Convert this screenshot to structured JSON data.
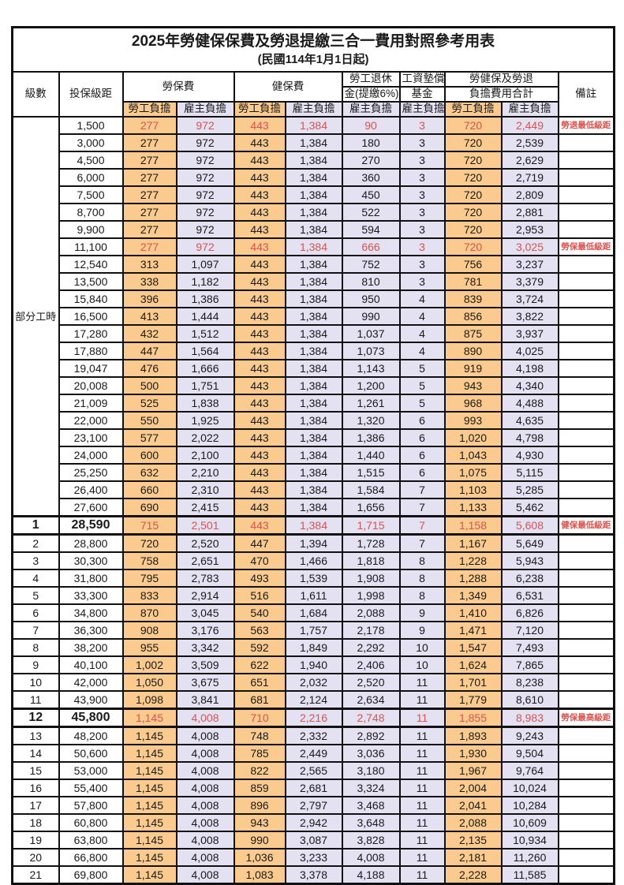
{
  "title": "2025年勞健保保費及勞退提繳三合一費用對照參考用表",
  "subtitle": "(民國114年1月1日起)",
  "colors": {
    "employee_bg": "#fbca8e",
    "employer_bg": "#e3e1f2",
    "red_text": "#d9534f"
  },
  "header": {
    "level": "級數",
    "bracket": "投保級距",
    "labor_ins": "勞保費",
    "health_ins": "健保費",
    "pension_line1": "勞工退休",
    "pension_line2": "金(提繳6%)",
    "wage_fund_line1": "工資墊償",
    "wage_fund_line2": "基金",
    "total_line1": "勞健保及勞退",
    "total_line2": "負擔費用合計",
    "note": "備註",
    "employee_share": "勞工負擔",
    "employer_share": "雇主負擔"
  },
  "part_time_label": "部分工時",
  "part_time_rowspan": 23,
  "rows": [
    {
      "level": "",
      "bracket": "1,500",
      "li_emp": "277",
      "li_er": "972",
      "hi_emp": "443",
      "hi_er": "1,384",
      "pension": "90",
      "fund": "3",
      "tot_emp": "720",
      "tot_er": "2,449",
      "note": "勞退最低級距",
      "red": true,
      "bold": false
    },
    {
      "level": "",
      "bracket": "3,000",
      "li_emp": "277",
      "li_er": "972",
      "hi_emp": "443",
      "hi_er": "1,384",
      "pension": "180",
      "fund": "3",
      "tot_emp": "720",
      "tot_er": "2,539",
      "note": "",
      "red": false,
      "bold": false
    },
    {
      "level": "",
      "bracket": "4,500",
      "li_emp": "277",
      "li_er": "972",
      "hi_emp": "443",
      "hi_er": "1,384",
      "pension": "270",
      "fund": "3",
      "tot_emp": "720",
      "tot_er": "2,629",
      "note": "",
      "red": false,
      "bold": false
    },
    {
      "level": "",
      "bracket": "6,000",
      "li_emp": "277",
      "li_er": "972",
      "hi_emp": "443",
      "hi_er": "1,384",
      "pension": "360",
      "fund": "3",
      "tot_emp": "720",
      "tot_er": "2,719",
      "note": "",
      "red": false,
      "bold": false
    },
    {
      "level": "",
      "bracket": "7,500",
      "li_emp": "277",
      "li_er": "972",
      "hi_emp": "443",
      "hi_er": "1,384",
      "pension": "450",
      "fund": "3",
      "tot_emp": "720",
      "tot_er": "2,809",
      "note": "",
      "red": false,
      "bold": false
    },
    {
      "level": "",
      "bracket": "8,700",
      "li_emp": "277",
      "li_er": "972",
      "hi_emp": "443",
      "hi_er": "1,384",
      "pension": "522",
      "fund": "3",
      "tot_emp": "720",
      "tot_er": "2,881",
      "note": "",
      "red": false,
      "bold": false
    },
    {
      "level": "",
      "bracket": "9,900",
      "li_emp": "277",
      "li_er": "972",
      "hi_emp": "443",
      "hi_er": "1,384",
      "pension": "594",
      "fund": "3",
      "tot_emp": "720",
      "tot_er": "2,953",
      "note": "",
      "red": false,
      "bold": false
    },
    {
      "level": "",
      "bracket": "11,100",
      "li_emp": "277",
      "li_er": "972",
      "hi_emp": "443",
      "hi_er": "1,384",
      "pension": "666",
      "fund": "3",
      "tot_emp": "720",
      "tot_er": "3,025",
      "note": "勞保最低級距",
      "red": true,
      "bold": false
    },
    {
      "level": "",
      "bracket": "12,540",
      "li_emp": "313",
      "li_er": "1,097",
      "hi_emp": "443",
      "hi_er": "1,384",
      "pension": "752",
      "fund": "3",
      "tot_emp": "756",
      "tot_er": "3,237",
      "note": "",
      "red": false,
      "bold": false
    },
    {
      "level": "",
      "bracket": "13,500",
      "li_emp": "338",
      "li_er": "1,182",
      "hi_emp": "443",
      "hi_er": "1,384",
      "pension": "810",
      "fund": "3",
      "tot_emp": "781",
      "tot_er": "3,379",
      "note": "",
      "red": false,
      "bold": false
    },
    {
      "level": "",
      "bracket": "15,840",
      "li_emp": "396",
      "li_er": "1,386",
      "hi_emp": "443",
      "hi_er": "1,384",
      "pension": "950",
      "fund": "4",
      "tot_emp": "839",
      "tot_er": "3,724",
      "note": "",
      "red": false,
      "bold": false
    },
    {
      "level": "",
      "bracket": "16,500",
      "li_emp": "413",
      "li_er": "1,444",
      "hi_emp": "443",
      "hi_er": "1,384",
      "pension": "990",
      "fund": "4",
      "tot_emp": "856",
      "tot_er": "3,822",
      "note": "",
      "red": false,
      "bold": false
    },
    {
      "level": "",
      "bracket": "17,280",
      "li_emp": "432",
      "li_er": "1,512",
      "hi_emp": "443",
      "hi_er": "1,384",
      "pension": "1,037",
      "fund": "4",
      "tot_emp": "875",
      "tot_er": "3,937",
      "note": "",
      "red": false,
      "bold": false
    },
    {
      "level": "",
      "bracket": "17,880",
      "li_emp": "447",
      "li_er": "1,564",
      "hi_emp": "443",
      "hi_er": "1,384",
      "pension": "1,073",
      "fund": "4",
      "tot_emp": "890",
      "tot_er": "4,025",
      "note": "",
      "red": false,
      "bold": false
    },
    {
      "level": "",
      "bracket": "19,047",
      "li_emp": "476",
      "li_er": "1,666",
      "hi_emp": "443",
      "hi_er": "1,384",
      "pension": "1,143",
      "fund": "5",
      "tot_emp": "919",
      "tot_er": "4,198",
      "note": "",
      "red": false,
      "bold": false
    },
    {
      "level": "",
      "bracket": "20,008",
      "li_emp": "500",
      "li_er": "1,751",
      "hi_emp": "443",
      "hi_er": "1,384",
      "pension": "1,200",
      "fund": "5",
      "tot_emp": "943",
      "tot_er": "4,340",
      "note": "",
      "red": false,
      "bold": false
    },
    {
      "level": "",
      "bracket": "21,009",
      "li_emp": "525",
      "li_er": "1,838",
      "hi_emp": "443",
      "hi_er": "1,384",
      "pension": "1,261",
      "fund": "5",
      "tot_emp": "968",
      "tot_er": "4,488",
      "note": "",
      "red": false,
      "bold": false
    },
    {
      "level": "",
      "bracket": "22,000",
      "li_emp": "550",
      "li_er": "1,925",
      "hi_emp": "443",
      "hi_er": "1,384",
      "pension": "1,320",
      "fund": "6",
      "tot_emp": "993",
      "tot_er": "4,635",
      "note": "",
      "red": false,
      "bold": false
    },
    {
      "level": "",
      "bracket": "23,100",
      "li_emp": "577",
      "li_er": "2,022",
      "hi_emp": "443",
      "hi_er": "1,384",
      "pension": "1,386",
      "fund": "6",
      "tot_emp": "1,020",
      "tot_er": "4,798",
      "note": "",
      "red": false,
      "bold": false
    },
    {
      "level": "",
      "bracket": "24,000",
      "li_emp": "600",
      "li_er": "2,100",
      "hi_emp": "443",
      "hi_er": "1,384",
      "pension": "1,440",
      "fund": "6",
      "tot_emp": "1,043",
      "tot_er": "4,930",
      "note": "",
      "red": false,
      "bold": false
    },
    {
      "level": "",
      "bracket": "25,250",
      "li_emp": "632",
      "li_er": "2,210",
      "hi_emp": "443",
      "hi_er": "1,384",
      "pension": "1,515",
      "fund": "6",
      "tot_emp": "1,075",
      "tot_er": "5,115",
      "note": "",
      "red": false,
      "bold": false
    },
    {
      "level": "",
      "bracket": "26,400",
      "li_emp": "660",
      "li_er": "2,310",
      "hi_emp": "443",
      "hi_er": "1,384",
      "pension": "1,584",
      "fund": "7",
      "tot_emp": "1,103",
      "tot_er": "5,285",
      "note": "",
      "red": false,
      "bold": false
    },
    {
      "level": "",
      "bracket": "27,600",
      "li_emp": "690",
      "li_er": "2,415",
      "hi_emp": "443",
      "hi_er": "1,384",
      "pension": "1,656",
      "fund": "7",
      "tot_emp": "1,133",
      "tot_er": "5,462",
      "note": "",
      "red": false,
      "bold": false
    },
    {
      "level": "1",
      "bracket": "28,590",
      "li_emp": "715",
      "li_er": "2,501",
      "hi_emp": "443",
      "hi_er": "1,384",
      "pension": "1,715",
      "fund": "7",
      "tot_emp": "1,158",
      "tot_er": "5,608",
      "note": "健保最低級距",
      "red": true,
      "bold": true
    },
    {
      "level": "2",
      "bracket": "28,800",
      "li_emp": "720",
      "li_er": "2,520",
      "hi_emp": "447",
      "hi_er": "1,394",
      "pension": "1,728",
      "fund": "7",
      "tot_emp": "1,167",
      "tot_er": "5,649",
      "note": "",
      "red": false,
      "bold": false
    },
    {
      "level": "3",
      "bracket": "30,300",
      "li_emp": "758",
      "li_er": "2,651",
      "hi_emp": "470",
      "hi_er": "1,466",
      "pension": "1,818",
      "fund": "8",
      "tot_emp": "1,228",
      "tot_er": "5,943",
      "note": "",
      "red": false,
      "bold": false
    },
    {
      "level": "4",
      "bracket": "31,800",
      "li_emp": "795",
      "li_er": "2,783",
      "hi_emp": "493",
      "hi_er": "1,539",
      "pension": "1,908",
      "fund": "8",
      "tot_emp": "1,288",
      "tot_er": "6,238",
      "note": "",
      "red": false,
      "bold": false
    },
    {
      "level": "5",
      "bracket": "33,300",
      "li_emp": "833",
      "li_er": "2,914",
      "hi_emp": "516",
      "hi_er": "1,611",
      "pension": "1,998",
      "fund": "8",
      "tot_emp": "1,349",
      "tot_er": "6,531",
      "note": "",
      "red": false,
      "bold": false
    },
    {
      "level": "6",
      "bracket": "34,800",
      "li_emp": "870",
      "li_er": "3,045",
      "hi_emp": "540",
      "hi_er": "1,684",
      "pension": "2,088",
      "fund": "9",
      "tot_emp": "1,410",
      "tot_er": "6,826",
      "note": "",
      "red": false,
      "bold": false
    },
    {
      "level": "7",
      "bracket": "36,300",
      "li_emp": "908",
      "li_er": "3,176",
      "hi_emp": "563",
      "hi_er": "1,757",
      "pension": "2,178",
      "fund": "9",
      "tot_emp": "1,471",
      "tot_er": "7,120",
      "note": "",
      "red": false,
      "bold": false
    },
    {
      "level": "8",
      "bracket": "38,200",
      "li_emp": "955",
      "li_er": "3,342",
      "hi_emp": "592",
      "hi_er": "1,849",
      "pension": "2,292",
      "fund": "10",
      "tot_emp": "1,547",
      "tot_er": "7,493",
      "note": "",
      "red": false,
      "bold": false
    },
    {
      "level": "9",
      "bracket": "40,100",
      "li_emp": "1,002",
      "li_er": "3,509",
      "hi_emp": "622",
      "hi_er": "1,940",
      "pension": "2,406",
      "fund": "10",
      "tot_emp": "1,624",
      "tot_er": "7,865",
      "note": "",
      "red": false,
      "bold": false
    },
    {
      "level": "10",
      "bracket": "42,000",
      "li_emp": "1,050",
      "li_er": "3,675",
      "hi_emp": "651",
      "hi_er": "2,032",
      "pension": "2,520",
      "fund": "11",
      "tot_emp": "1,701",
      "tot_er": "8,238",
      "note": "",
      "red": false,
      "bold": false
    },
    {
      "level": "11",
      "bracket": "43,900",
      "li_emp": "1,098",
      "li_er": "3,841",
      "hi_emp": "681",
      "hi_er": "2,124",
      "pension": "2,634",
      "fund": "11",
      "tot_emp": "1,779",
      "tot_er": "8,610",
      "note": "",
      "red": false,
      "bold": false
    },
    {
      "level": "12",
      "bracket": "45,800",
      "li_emp": "1,145",
      "li_er": "4,008",
      "hi_emp": "710",
      "hi_er": "2,216",
      "pension": "2,748",
      "fund": "11",
      "tot_emp": "1,855",
      "tot_er": "8,983",
      "note": "勞保最高級距",
      "red": true,
      "bold": true
    },
    {
      "level": "13",
      "bracket": "48,200",
      "li_emp": "1,145",
      "li_er": "4,008",
      "hi_emp": "748",
      "hi_er": "2,332",
      "pension": "2,892",
      "fund": "11",
      "tot_emp": "1,893",
      "tot_er": "9,243",
      "note": "",
      "red": false,
      "bold": false
    },
    {
      "level": "14",
      "bracket": "50,600",
      "li_emp": "1,145",
      "li_er": "4,008",
      "hi_emp": "785",
      "hi_er": "2,449",
      "pension": "3,036",
      "fund": "11",
      "tot_emp": "1,930",
      "tot_er": "9,504",
      "note": "",
      "red": false,
      "bold": false
    },
    {
      "level": "15",
      "bracket": "53,000",
      "li_emp": "1,145",
      "li_er": "4,008",
      "hi_emp": "822",
      "hi_er": "2,565",
      "pension": "3,180",
      "fund": "11",
      "tot_emp": "1,967",
      "tot_er": "9,764",
      "note": "",
      "red": false,
      "bold": false
    },
    {
      "level": "16",
      "bracket": "55,400",
      "li_emp": "1,145",
      "li_er": "4,008",
      "hi_emp": "859",
      "hi_er": "2,681",
      "pension": "3,324",
      "fund": "11",
      "tot_emp": "2,004",
      "tot_er": "10,024",
      "note": "",
      "red": false,
      "bold": false
    },
    {
      "level": "17",
      "bracket": "57,800",
      "li_emp": "1,145",
      "li_er": "4,008",
      "hi_emp": "896",
      "hi_er": "2,797",
      "pension": "3,468",
      "fund": "11",
      "tot_emp": "2,041",
      "tot_er": "10,284",
      "note": "",
      "red": false,
      "bold": false
    },
    {
      "level": "18",
      "bracket": "60,800",
      "li_emp": "1,145",
      "li_er": "4,008",
      "hi_emp": "943",
      "hi_er": "2,942",
      "pension": "3,648",
      "fund": "11",
      "tot_emp": "2,088",
      "tot_er": "10,609",
      "note": "",
      "red": false,
      "bold": false
    },
    {
      "level": "19",
      "bracket": "63,800",
      "li_emp": "1,145",
      "li_er": "4,008",
      "hi_emp": "990",
      "hi_er": "3,087",
      "pension": "3,828",
      "fund": "11",
      "tot_emp": "2,135",
      "tot_er": "10,934",
      "note": "",
      "red": false,
      "bold": false
    },
    {
      "level": "20",
      "bracket": "66,800",
      "li_emp": "1,145",
      "li_er": "4,008",
      "hi_emp": "1,036",
      "hi_er": "3,233",
      "pension": "4,008",
      "fund": "11",
      "tot_emp": "2,181",
      "tot_er": "11,260",
      "note": "",
      "red": false,
      "bold": false
    },
    {
      "level": "21",
      "bracket": "69,800",
      "li_emp": "1,145",
      "li_er": "4,008",
      "hi_emp": "1,083",
      "hi_er": "3,378",
      "pension": "4,188",
      "fund": "11",
      "tot_emp": "2,228",
      "tot_er": "11,585",
      "note": "",
      "red": false,
      "bold": false
    }
  ]
}
